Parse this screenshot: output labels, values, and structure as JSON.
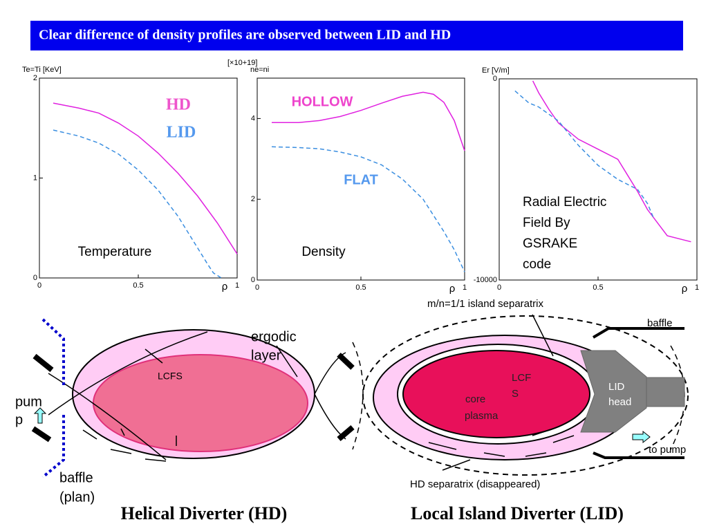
{
  "header": {
    "title": "Clear difference of density profiles are observed between LID and HD"
  },
  "chart_data": [
    {
      "type": "line",
      "y_label": "Te=Ti  [KeV]",
      "x_label": "ρ",
      "xlim": [
        0,
        1
      ],
      "xticks": [
        0,
        0.5,
        1
      ],
      "ylim": [
        0,
        2
      ],
      "yticks": [
        0,
        1,
        2
      ],
      "series": [
        {
          "name": "HD",
          "color": "#e020e0",
          "dashed": false,
          "x": [
            0.07,
            0.2,
            0.3,
            0.4,
            0.5,
            0.6,
            0.7,
            0.8,
            0.9,
            1.0
          ],
          "values": [
            1.75,
            1.7,
            1.65,
            1.55,
            1.42,
            1.25,
            1.05,
            0.82,
            0.55,
            0.24
          ]
        },
        {
          "name": "LID",
          "color": "#3a8ee0",
          "dashed": true,
          "x": [
            0.07,
            0.2,
            0.3,
            0.4,
            0.5,
            0.6,
            0.7,
            0.8,
            0.85,
            0.88,
            0.92
          ],
          "values": [
            1.48,
            1.42,
            1.35,
            1.24,
            1.08,
            0.88,
            0.62,
            0.3,
            0.14,
            0.05,
            0
          ]
        }
      ],
      "annotations": [
        {
          "text": "HD",
          "color": "#ee55cc"
        },
        {
          "text": "LID",
          "color": "#5599ee"
        },
        {
          "text": "Temperature",
          "color": "#000000"
        }
      ]
    },
    {
      "type": "line",
      "y_label": "ne=ni",
      "y_multiplier": "[×10+19]",
      "x_label": "ρ",
      "xlim": [
        0,
        1
      ],
      "xticks": [
        0,
        0.5,
        1
      ],
      "ylim": [
        0,
        5
      ],
      "yticks": [
        0,
        2,
        4
      ],
      "series": [
        {
          "name": "HOLLOW",
          "color": "#e020e0",
          "dashed": false,
          "x": [
            0.07,
            0.2,
            0.3,
            0.4,
            0.5,
            0.6,
            0.7,
            0.8,
            0.85,
            0.9,
            0.95,
            1.0
          ],
          "values": [
            3.9,
            3.9,
            3.95,
            4.05,
            4.2,
            4.38,
            4.55,
            4.65,
            4.6,
            4.4,
            3.95,
            3.2
          ]
        },
        {
          "name": "FLAT",
          "color": "#3a8ee0",
          "dashed": true,
          "x": [
            0.07,
            0.2,
            0.3,
            0.4,
            0.5,
            0.6,
            0.7,
            0.8,
            0.9,
            0.95,
            1.0
          ],
          "values": [
            3.3,
            3.28,
            3.25,
            3.17,
            3.05,
            2.85,
            2.5,
            2.0,
            1.2,
            0.75,
            0.2
          ]
        }
      ],
      "annotations": [
        {
          "text": "HOLLOW",
          "color": "#ee44cc"
        },
        {
          "text": "FLAT",
          "color": "#5599ee"
        },
        {
          "text": "Density",
          "color": "#000000"
        }
      ]
    },
    {
      "type": "line",
      "y_label": "Er [V/m]",
      "x_label": "ρ",
      "xlim": [
        0,
        1
      ],
      "xticks": [
        0,
        0.5,
        1
      ],
      "ylim": [
        -10000,
        0
      ],
      "yticks": [
        -10000,
        0
      ],
      "series": [
        {
          "color": "#e020e0",
          "dashed": false,
          "x": [
            0.17,
            0.2,
            0.25,
            0.3,
            0.4,
            0.5,
            0.6,
            0.65,
            0.7,
            0.75,
            0.85,
            0.93,
            0.97
          ],
          "values": [
            -100,
            -700,
            -1500,
            -2200,
            -3000,
            -3500,
            -4000,
            -4800,
            -5600,
            -6500,
            -7800,
            -8000,
            -8100
          ]
        },
        {
          "color": "#3a8ee0",
          "dashed": true,
          "x": [
            0.08,
            0.15,
            0.2,
            0.3,
            0.4,
            0.5,
            0.6,
            0.7,
            0.75,
            0.78
          ],
          "values": [
            -600,
            -1200,
            -1400,
            -2100,
            -3300,
            -4300,
            -5000,
            -5500,
            -6200,
            -6900
          ]
        }
      ],
      "annotations": [
        {
          "text": "Radial Electric",
          "color": "#000000"
        },
        {
          "text": "Field By",
          "color": "#000000"
        },
        {
          "text": "GSRAKE",
          "color": "#000000"
        },
        {
          "text": "code",
          "color": "#000000"
        }
      ]
    }
  ],
  "diagrams": {
    "hd": {
      "title": "Helical Diverter (HD)",
      "ergodic": [
        "ergodic",
        "layer"
      ],
      "lcfs": "LCFS",
      "pump": [
        "pum",
        "p"
      ],
      "baffle": [
        "baffle",
        "(plan)"
      ]
    },
    "lid": {
      "title": "Local Island Diverter (LID)",
      "separatrix": "m/n=1/1 island separatrix",
      "baffle": "baffle",
      "lcfs": [
        "LCF",
        "S"
      ],
      "core": [
        "core",
        "plasma"
      ],
      "head": [
        "LID",
        "head"
      ],
      "to_pump": "to pump",
      "hd_separatrix": "HD separatrix (disappeared)"
    }
  }
}
